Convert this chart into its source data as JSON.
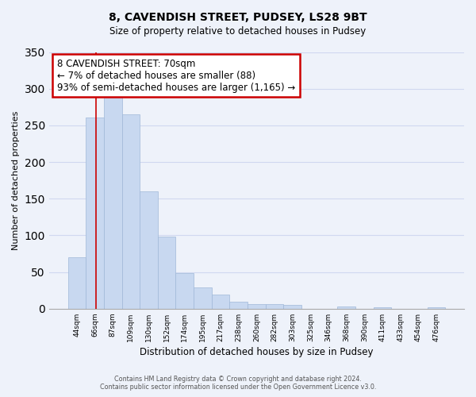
{
  "title": "8, CAVENDISH STREET, PUDSEY, LS28 9BT",
  "subtitle": "Size of property relative to detached houses in Pudsey",
  "xlabel": "Distribution of detached houses by size in Pudsey",
  "ylabel": "Number of detached properties",
  "bin_labels": [
    "44sqm",
    "66sqm",
    "87sqm",
    "109sqm",
    "130sqm",
    "152sqm",
    "174sqm",
    "195sqm",
    "217sqm",
    "238sqm",
    "260sqm",
    "282sqm",
    "303sqm",
    "325sqm",
    "346sqm",
    "368sqm",
    "390sqm",
    "411sqm",
    "433sqm",
    "454sqm",
    "476sqm"
  ],
  "bar_heights": [
    70,
    261,
    293,
    265,
    160,
    98,
    49,
    29,
    19,
    10,
    6,
    6,
    5,
    0,
    0,
    3,
    0,
    2,
    0,
    0,
    2
  ],
  "bar_color": "#c8d8f0",
  "bar_edge_color": "#a0b8d8",
  "ylim": [
    0,
    350
  ],
  "yticks": [
    0,
    50,
    100,
    150,
    200,
    250,
    300,
    350
  ],
  "annotation_title": "8 CAVENDISH STREET: 70sqm",
  "annotation_line1": "← 7% of detached houses are smaller (88)",
  "annotation_line2": "93% of semi-detached houses are larger (1,165) →",
  "annotation_box_color": "#ffffff",
  "annotation_box_edge": "#cc0000",
  "footer_line1": "Contains HM Land Registry data © Crown copyright and database right 2024.",
  "footer_line2": "Contains public sector information licensed under the Open Government Licence v3.0.",
  "background_color": "#eef2fa",
  "grid_color": "#d0d8f0",
  "redline_color": "#cc0000"
}
